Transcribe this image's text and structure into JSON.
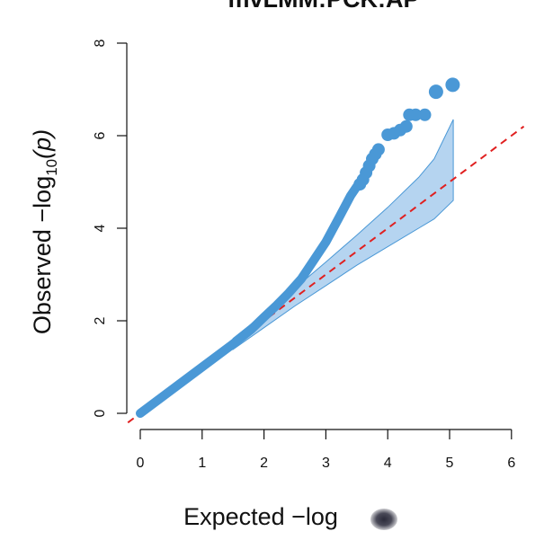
{
  "chart_data": {
    "type": "scatter",
    "title": "mvLMM:PCK:AP",
    "xlabel": "Expected  −log",
    "ylabel_prefix": "Observed  −log",
    "ylabel_sub": "10",
    "ylabel_var": "(p)",
    "xlim": [
      0,
      6
    ],
    "ylim": [
      0,
      8
    ],
    "xticks": [
      "0",
      "1",
      "2",
      "3",
      "4",
      "5",
      "6"
    ],
    "yticks": [
      "0",
      "2",
      "4",
      "6",
      "8"
    ],
    "grid": false,
    "legend": "none",
    "colors": {
      "points": "#4a98d6",
      "band_fill": "#b5d4f0",
      "band_stroke": "#4a98d6",
      "reference_line": "#e02020"
    },
    "reference_line": {
      "style": "dashed",
      "from": [
        -0.2,
        -0.2
      ],
      "to": [
        6.2,
        6.2
      ]
    },
    "confidence_band": {
      "x": [
        1.5,
        2.0,
        2.5,
        3.0,
        3.5,
        4.0,
        4.5,
        4.75,
        5.06
      ],
      "upper": [
        1.62,
        2.15,
        2.7,
        3.27,
        3.85,
        4.45,
        5.1,
        5.5,
        6.35
      ],
      "lower": [
        1.38,
        1.85,
        2.32,
        2.76,
        3.2,
        3.6,
        4.0,
        4.2,
        4.6
      ]
    },
    "curve": {
      "x": [
        0.0,
        0.5,
        1.0,
        1.5,
        1.8,
        2.0,
        2.2,
        2.4,
        2.6,
        2.8,
        3.0,
        3.2,
        3.4,
        3.5
      ],
      "y": [
        0.0,
        0.5,
        1.0,
        1.5,
        1.82,
        2.08,
        2.33,
        2.6,
        2.9,
        3.3,
        3.7,
        4.2,
        4.7,
        4.9
      ]
    },
    "points": [
      {
        "x": 3.55,
        "y": 4.95,
        "size": 7
      },
      {
        "x": 3.6,
        "y": 5.05,
        "size": 7
      },
      {
        "x": 3.65,
        "y": 5.2,
        "size": 7
      },
      {
        "x": 3.7,
        "y": 5.35,
        "size": 7
      },
      {
        "x": 3.75,
        "y": 5.5,
        "size": 7
      },
      {
        "x": 3.8,
        "y": 5.6,
        "size": 7
      },
      {
        "x": 3.85,
        "y": 5.7,
        "size": 7
      },
      {
        "x": 4.0,
        "y": 6.02,
        "size": 7
      },
      {
        "x": 4.1,
        "y": 6.05,
        "size": 7
      },
      {
        "x": 4.2,
        "y": 6.12,
        "size": 7
      },
      {
        "x": 4.3,
        "y": 6.2,
        "size": 7
      },
      {
        "x": 4.35,
        "y": 6.45,
        "size": 7
      },
      {
        "x": 4.45,
        "y": 6.45,
        "size": 7
      },
      {
        "x": 4.6,
        "y": 6.45,
        "size": 7
      },
      {
        "x": 4.78,
        "y": 6.95,
        "size": 8
      },
      {
        "x": 5.05,
        "y": 7.1,
        "size": 8
      }
    ]
  }
}
